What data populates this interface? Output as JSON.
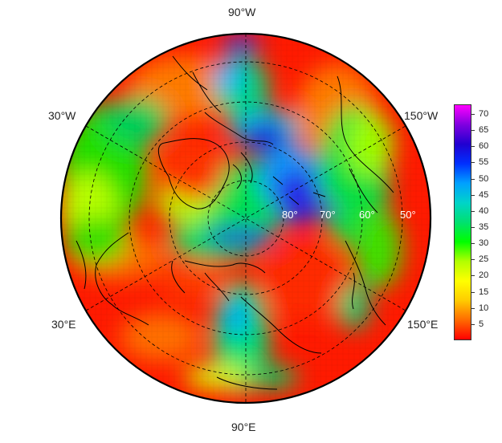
{
  "map": {
    "projection": "north polar stereographic",
    "longitude_labels": {
      "top": "90°W",
      "upper_left": "30°W",
      "upper_right": "150°W",
      "lower_left": "30°E",
      "lower_right": "150°E",
      "bottom": "90°E"
    },
    "latitude_labels": [
      "80°",
      "70°",
      "60°",
      "50°"
    ],
    "graticule": "dashed",
    "coastlines": "black outlines"
  },
  "colorbar": {
    "ticks": [
      "70",
      "65",
      "60",
      "55",
      "50",
      "45",
      "40",
      "35",
      "30",
      "25",
      "20",
      "15",
      "10",
      "5"
    ],
    "range": [
      0,
      73
    ],
    "palette": [
      "#ff0000",
      "#ff6a00",
      "#ffcc00",
      "#ffff00",
      "#b2ff00",
      "#00ff00",
      "#00e070",
      "#00d4c8",
      "#00a0ff",
      "#0030ff",
      "#2000d0",
      "#8000e0",
      "#ff00ff"
    ]
  },
  "colors": {
    "background": "#ffffff",
    "ocean_high": "#3a1fd0",
    "land_low": "#ff2a00"
  }
}
